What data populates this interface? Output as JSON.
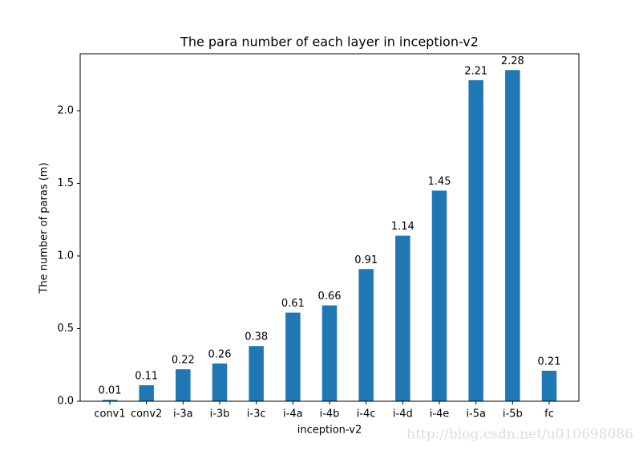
{
  "chart_data": {
    "type": "bar",
    "title": "The para number of each layer in inception-v2",
    "x_label": "inception-v2",
    "y_label": "The number of paras (m)",
    "categories": [
      "conv1",
      "conv2",
      "i-3a",
      "i-3b",
      "i-3c",
      "i-4a",
      "i-4b",
      "i-4c",
      "i-4d",
      "i-4e",
      "i-5a",
      "i-5b",
      "fc"
    ],
    "values": [
      0.01,
      0.11,
      0.22,
      0.26,
      0.38,
      0.61,
      0.66,
      0.91,
      1.14,
      1.45,
      2.21,
      2.28,
      0.21
    ],
    "color": "#1f77b4",
    "ylim": [
      0,
      2.392
    ],
    "yticks": [
      {
        "value": 0,
        "label": "0.0"
      },
      0.5,
      {
        "value": 1,
        "label": "1.0"
      },
      1.5,
      {
        "value": 2,
        "label": "2.0"
      }
    ],
    "grid": false
  },
  "watermark": "http://blog.csdn.net/u010698086"
}
